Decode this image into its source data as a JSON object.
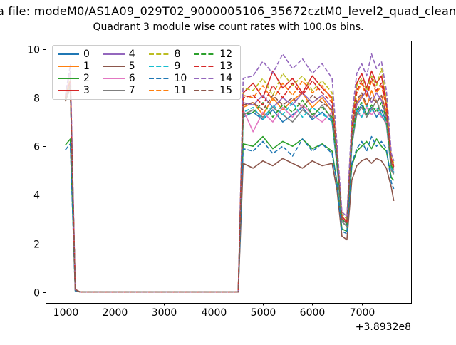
{
  "figure": {
    "title_line1": "a file: modeM0/AS1A09_029T02_9000005106_35672cztM0_level2_quad_clean",
    "title_line2": "Quadrant 3 module wise count rates with 100.0s bins.",
    "x_axis_offset_label": "+3.8932e8"
  },
  "chart_data": {
    "type": "line",
    "title": "Quadrant 3 module wise count rates with 100.0s bins.",
    "suptitle_visible": "a file: modeM0/AS1A09_029T02_9000005106_35672cztM0_level2_quad_clean",
    "xlabel": "",
    "ylabel": "",
    "x_offset_text": "+3.8932e8",
    "xlim": [
      600,
      8000
    ],
    "ylim": [
      -0.45,
      10.35
    ],
    "xticks": [
      1000,
      2000,
      3000,
      4000,
      5000,
      6000,
      7000
    ],
    "yticks": [
      0,
      2,
      4,
      6,
      8,
      10
    ],
    "grid": false,
    "legend_position": "upper left",
    "legend_columns": 4,
    "axis_color": "#000000",
    "x": [
      1000,
      1100,
      1200,
      1300,
      4500,
      4600,
      4800,
      5000,
      5200,
      5400,
      5600,
      5800,
      6000,
      6200,
      6400,
      6500,
      6600,
      6700,
      6800,
      6900,
      7000,
      7100,
      7200,
      7300,
      7400,
      7500,
      7600,
      7650
    ],
    "series": [
      {
        "name": "0",
        "color": "#1f77b4",
        "dash": false,
        "values": [
          7.9,
          8.5,
          0.1,
          0,
          0,
          7.2,
          7.4,
          7.1,
          7.5,
          7.0,
          7.3,
          7.6,
          7.1,
          7.4,
          7.0,
          5.2,
          2.9,
          2.7,
          6.0,
          7.4,
          7.7,
          7.3,
          7.6,
          7.2,
          7.5,
          7.0,
          5.1,
          4.9
        ]
      },
      {
        "name": "1",
        "color": "#ff7f0e",
        "dash": false,
        "values": [
          8.0,
          8.6,
          0.1,
          0,
          0,
          7.6,
          7.8,
          7.3,
          8.0,
          7.5,
          7.9,
          8.2,
          7.6,
          8.0,
          7.4,
          5.5,
          3.0,
          2.8,
          6.4,
          7.8,
          8.1,
          7.6,
          8.3,
          7.8,
          8.1,
          7.4,
          5.3,
          5.0
        ]
      },
      {
        "name": "2",
        "color": "#2ca02c",
        "dash": false,
        "values": [
          6.05,
          6.3,
          0.05,
          0,
          0,
          6.1,
          6.0,
          6.4,
          5.9,
          6.2,
          6.0,
          6.3,
          5.9,
          6.1,
          5.8,
          4.5,
          2.6,
          2.5,
          5.2,
          5.8,
          6.0,
          6.2,
          5.9,
          6.3,
          6.0,
          5.8,
          4.7,
          4.6
        ]
      },
      {
        "name": "3",
        "color": "#d62728",
        "dash": false,
        "values": [
          8.1,
          8.7,
          0.1,
          0,
          0,
          8.2,
          8.6,
          8.0,
          9.1,
          8.4,
          8.8,
          8.2,
          8.9,
          8.4,
          8.0,
          5.8,
          3.1,
          2.9,
          6.8,
          8.6,
          9.0,
          8.4,
          9.1,
          8.6,
          8.9,
          7.8,
          5.5,
          5.2
        ]
      },
      {
        "name": "4",
        "color": "#9467bd",
        "dash": false,
        "values": [
          7.95,
          8.5,
          0.1,
          0,
          0,
          7.8,
          7.7,
          8.1,
          7.6,
          8.0,
          7.7,
          8.2,
          7.8,
          8.1,
          7.6,
          5.6,
          3.0,
          2.8,
          6.3,
          7.7,
          8.0,
          8.3,
          7.8,
          8.2,
          7.9,
          7.2,
          5.2,
          5.0
        ]
      },
      {
        "name": "5",
        "color": "#8c564b",
        "dash": false,
        "values": [
          7.85,
          8.4,
          0.1,
          0,
          0,
          5.3,
          5.1,
          5.4,
          5.2,
          5.5,
          5.3,
          5.1,
          5.4,
          5.2,
          5.3,
          4.2,
          2.3,
          2.15,
          4.6,
          5.2,
          5.4,
          5.5,
          5.3,
          5.5,
          5.4,
          5.1,
          4.3,
          3.75
        ]
      },
      {
        "name": "6",
        "color": "#e377c2",
        "dash": false,
        "values": [
          8.0,
          9.1,
          0.1,
          0,
          0,
          7.5,
          6.6,
          7.4,
          7.0,
          7.6,
          7.2,
          7.7,
          7.3,
          7.0,
          7.4,
          5.4,
          3.0,
          2.8,
          6.2,
          7.4,
          7.2,
          7.6,
          7.3,
          7.5,
          7.2,
          7.0,
          5.2,
          5.05
        ]
      },
      {
        "name": "7",
        "color": "#7f7f7f",
        "dash": false,
        "values": [
          7.9,
          8.5,
          0.1,
          0,
          0,
          7.3,
          7.5,
          7.2,
          7.6,
          7.3,
          7.0,
          7.5,
          7.2,
          7.7,
          7.1,
          5.3,
          2.9,
          2.7,
          6.1,
          7.3,
          7.6,
          7.2,
          7.5,
          7.9,
          7.3,
          6.9,
          5.0,
          4.85
        ]
      },
      {
        "name": "8",
        "color": "#bcbd22",
        "dash": true,
        "values": [
          8.05,
          8.8,
          0.1,
          0,
          0,
          8.4,
          8.3,
          8.8,
          8.1,
          9.0,
          8.5,
          8.9,
          8.3,
          8.7,
          8.2,
          5.9,
          3.2,
          3.0,
          6.9,
          8.5,
          8.8,
          8.3,
          8.9,
          8.5,
          9.2,
          8.0,
          5.6,
          5.3
        ]
      },
      {
        "name": "9",
        "color": "#17becf",
        "dash": true,
        "values": [
          7.95,
          8.5,
          0.1,
          0,
          0,
          7.4,
          7.6,
          7.1,
          7.7,
          7.3,
          7.8,
          7.2,
          7.6,
          7.3,
          7.1,
          5.4,
          3.0,
          2.8,
          6.2,
          7.5,
          7.2,
          7.7,
          7.4,
          7.6,
          7.3,
          7.0,
          5.1,
          4.95
        ]
      },
      {
        "name": "10",
        "color": "#1f77b4",
        "dash": true,
        "values": [
          5.85,
          6.1,
          0.05,
          0,
          0,
          5.9,
          5.8,
          6.2,
          5.7,
          6.0,
          5.6,
          6.3,
          5.8,
          6.1,
          5.7,
          4.4,
          2.5,
          2.4,
          5.3,
          5.9,
          6.2,
          5.8,
          6.4,
          6.0,
          6.2,
          5.9,
          4.5,
          4.25
        ]
      },
      {
        "name": "11",
        "color": "#ff7f0e",
        "dash": true,
        "values": [
          8.0,
          8.6,
          0.1,
          0,
          0,
          8.1,
          8.0,
          8.5,
          7.9,
          8.6,
          8.1,
          8.7,
          8.2,
          8.5,
          7.9,
          5.7,
          3.1,
          2.9,
          6.6,
          8.2,
          8.6,
          8.0,
          8.7,
          8.2,
          8.5,
          7.6,
          5.4,
          5.1
        ]
      },
      {
        "name": "12",
        "color": "#2ca02c",
        "dash": true,
        "values": [
          7.9,
          8.5,
          0.1,
          0,
          0,
          7.3,
          7.4,
          7.8,
          7.2,
          7.7,
          7.4,
          7.9,
          7.3,
          7.6,
          7.2,
          5.4,
          3.0,
          2.8,
          6.2,
          7.5,
          7.8,
          7.3,
          7.7,
          7.4,
          7.8,
          7.1,
          5.2,
          5.0
        ]
      },
      {
        "name": "13",
        "color": "#d62728",
        "dash": true,
        "values": [
          8.0,
          8.7,
          0.1,
          0,
          0,
          8.0,
          8.1,
          7.7,
          8.5,
          8.0,
          8.6,
          8.1,
          8.7,
          8.2,
          7.8,
          5.7,
          3.1,
          2.9,
          6.7,
          8.3,
          8.7,
          8.1,
          8.8,
          8.3,
          8.6,
          7.7,
          5.4,
          5.15
        ]
      },
      {
        "name": "14",
        "color": "#9467bd",
        "dash": true,
        "values": [
          8.1,
          9.35,
          0.1,
          0,
          0,
          8.8,
          8.9,
          9.5,
          9.0,
          9.8,
          9.2,
          9.6,
          9.0,
          9.4,
          8.8,
          6.1,
          3.3,
          3.1,
          7.2,
          9.0,
          9.4,
          8.9,
          9.8,
          9.2,
          9.5,
          8.3,
          5.7,
          5.4
        ]
      },
      {
        "name": "15",
        "color": "#8c564b",
        "dash": true,
        "values": [
          7.9,
          8.5,
          0.1,
          0,
          0,
          7.7,
          7.8,
          7.5,
          8.1,
          7.7,
          8.0,
          7.6,
          8.1,
          7.8,
          7.5,
          5.6,
          3.0,
          2.85,
          6.4,
          7.9,
          8.2,
          7.7,
          8.0,
          7.8,
          8.1,
          7.3,
          5.3,
          5.1
        ]
      }
    ]
  }
}
